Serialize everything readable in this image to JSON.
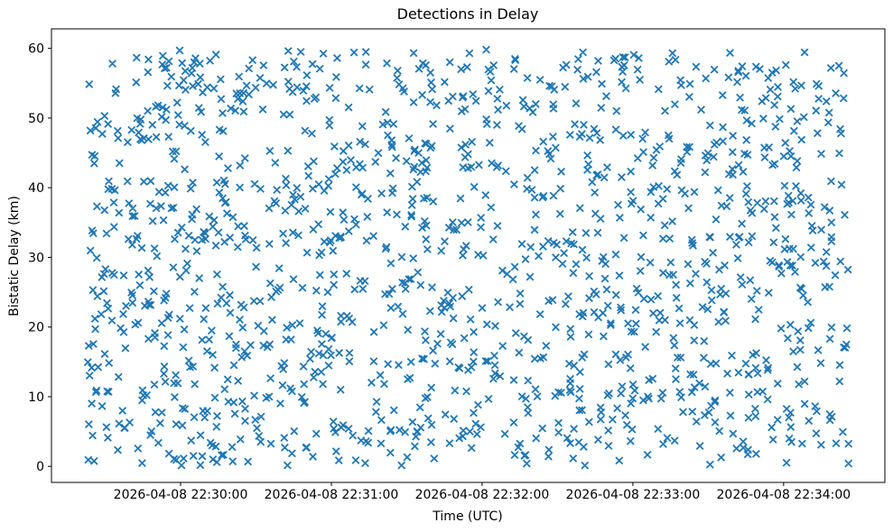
{
  "figure": {
    "title": "Detections in Delay",
    "xlabel": "Time (UTC)",
    "ylabel": "Bistatic Delay (km)"
  },
  "chart_data": {
    "type": "scatter",
    "title": "Detections in Delay",
    "xlabel": "Time (UTC)",
    "ylabel": "Bistatic Delay (km)",
    "marker": "x",
    "marker_color": "#1f77b4",
    "background_color": "#ffffff",
    "spine_color": "#000000",
    "grid": false,
    "legend": null,
    "x_axis": {
      "tick_labels": [
        "2026-04-08 22:30:00",
        "2026-04-08 22:31:00",
        "2026-04-08 22:32:00",
        "2026-04-08 22:33:00",
        "2026-04-08 22:34:00"
      ],
      "tick_seconds_from_first_tick": [
        0,
        60,
        120,
        180,
        240
      ],
      "lim_seconds_from_first_tick": [
        -51.4,
        280.3
      ],
      "lim_utc": [
        "2026-04-08 22:29:09",
        "2026-04-08 22:34:40"
      ]
    },
    "y_axis": {
      "ticks": [
        0,
        10,
        20,
        30,
        40,
        50,
        60
      ],
      "lim": [
        -2.3,
        62.8
      ]
    },
    "points": {
      "description": "Dense cloud of ~1450 radar detections; uniformly random in both time and bistatic delay, no visible structure or clustering.",
      "distribution": "uniform-random",
      "count": 1450,
      "seed": 20260408,
      "t_seconds_range_from_first_tick": [
        -37,
        266
      ],
      "t_utc_range": [
        "2026-04-08 22:29:23",
        "2026-04-08 22:34:26"
      ],
      "y_km_range": [
        0.1,
        59.9
      ]
    }
  }
}
